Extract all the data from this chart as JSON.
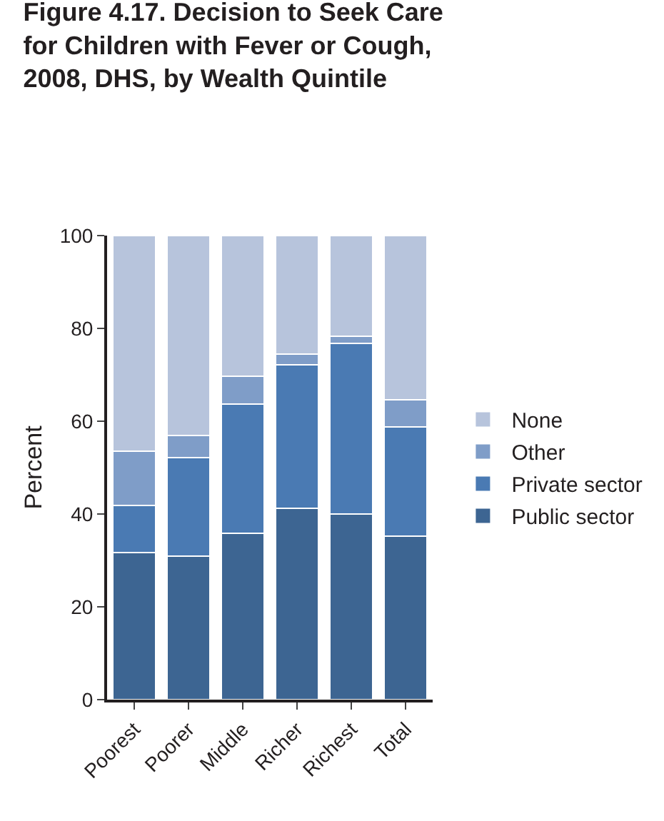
{
  "chart_data": {
    "type": "bar",
    "title": "Figure 4.17. Decision to Seek Care for Children with Fever or Cough, 2008, DHS, by Wealth Quintile",
    "ylabel": "Percent",
    "categories": [
      "Poorest",
      "Poorer",
      "Middle",
      "Richer",
      "Richest",
      "Total"
    ],
    "stacked": true,
    "series": [
      {
        "name": "Public sector",
        "color": "#3d6592",
        "values": [
          31.7,
          31.0,
          35.9,
          41.3,
          40.0,
          35.3
        ]
      },
      {
        "name": "Private sector",
        "color": "#4a7ab3",
        "values": [
          10.2,
          21.1,
          27.8,
          30.9,
          36.7,
          23.5
        ]
      },
      {
        "name": "Other",
        "color": "#7f9dc8",
        "values": [
          11.7,
          4.8,
          6.0,
          2.3,
          1.6,
          5.8
        ]
      },
      {
        "name": "None",
        "color": "#b7c4dc",
        "values": [
          46.4,
          43.1,
          30.3,
          25.5,
          21.7,
          35.4
        ]
      }
    ],
    "ylim": [
      0,
      100
    ],
    "yticks": [
      0,
      20,
      40,
      60,
      80,
      100
    ],
    "legend": "right"
  }
}
